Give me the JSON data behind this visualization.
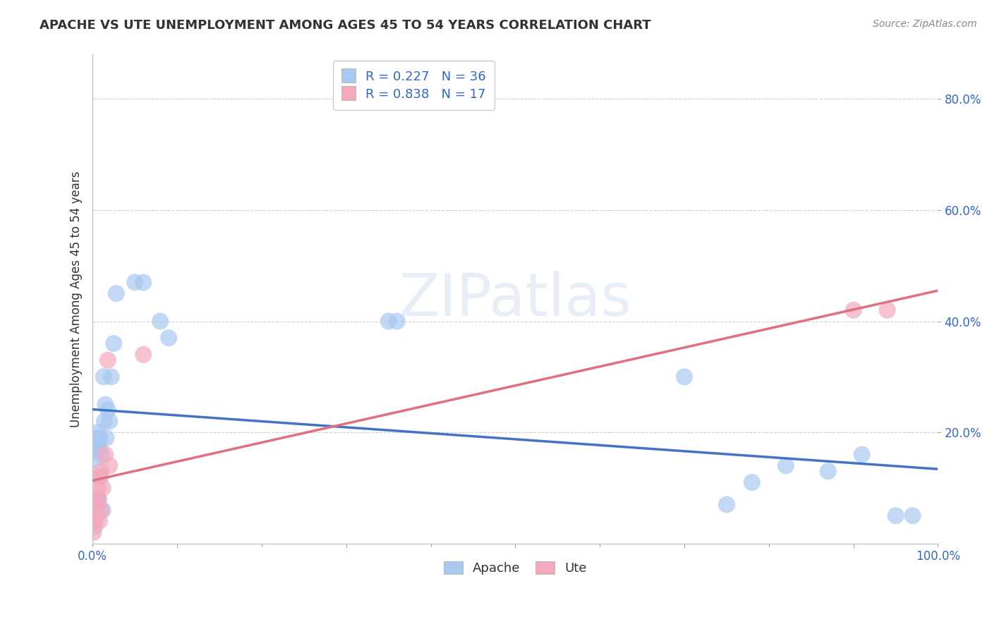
{
  "title": "APACHE VS UTE UNEMPLOYMENT AMONG AGES 45 TO 54 YEARS CORRELATION CHART",
  "source": "Source: ZipAtlas.com",
  "ylabel": "Unemployment Among Ages 45 to 54 years",
  "xlim": [
    0,
    1.0
  ],
  "ylim": [
    0,
    0.88
  ],
  "apache_R": 0.227,
  "apache_N": 36,
  "ute_R": 0.838,
  "ute_N": 17,
  "apache_color": "#a8c8f0",
  "ute_color": "#f4a8bc",
  "apache_line_color": "#4472C4",
  "ute_line_color": "#e07080",
  "watermark_text": "ZIPatlas",
  "apache_x": [
    0.002,
    0.003,
    0.004,
    0.005,
    0.006,
    0.006,
    0.007,
    0.007,
    0.008,
    0.008,
    0.009,
    0.01,
    0.012,
    0.013,
    0.014,
    0.015,
    0.016,
    0.018,
    0.02,
    0.022,
    0.025,
    0.028,
    0.05,
    0.06,
    0.08,
    0.09,
    0.35,
    0.36,
    0.7,
    0.75,
    0.78,
    0.82,
    0.87,
    0.91,
    0.95,
    0.97
  ],
  "apache_y": [
    0.03,
    0.15,
    0.17,
    0.19,
    0.2,
    0.08,
    0.08,
    0.18,
    0.17,
    0.12,
    0.19,
    0.16,
    0.06,
    0.3,
    0.22,
    0.25,
    0.19,
    0.24,
    0.22,
    0.3,
    0.36,
    0.45,
    0.47,
    0.47,
    0.4,
    0.37,
    0.4,
    0.4,
    0.3,
    0.07,
    0.11,
    0.14,
    0.13,
    0.16,
    0.05,
    0.05
  ],
  "ute_x": [
    0.001,
    0.003,
    0.004,
    0.005,
    0.006,
    0.007,
    0.008,
    0.009,
    0.01,
    0.01,
    0.012,
    0.015,
    0.018,
    0.02,
    0.06,
    0.9,
    0.94
  ],
  "ute_y": [
    0.02,
    0.04,
    0.05,
    0.07,
    0.1,
    0.08,
    0.04,
    0.12,
    0.13,
    0.06,
    0.1,
    0.16,
    0.33,
    0.14,
    0.34,
    0.42,
    0.42
  ],
  "xtick_labels": [
    "0.0%",
    "",
    "",
    "",
    "",
    "100.0%"
  ],
  "xtick_values": [
    0.0,
    0.2,
    0.4,
    0.6,
    0.8,
    1.0
  ],
  "ytick_labels": [
    "20.0%",
    "40.0%",
    "60.0%",
    "80.0%"
  ],
  "ytick_values": [
    0.2,
    0.4,
    0.6,
    0.8
  ],
  "grid_color": "#cccccc",
  "background_color": "#ffffff",
  "label_color": "#3366cc",
  "tick_label_color": "#3366cc"
}
